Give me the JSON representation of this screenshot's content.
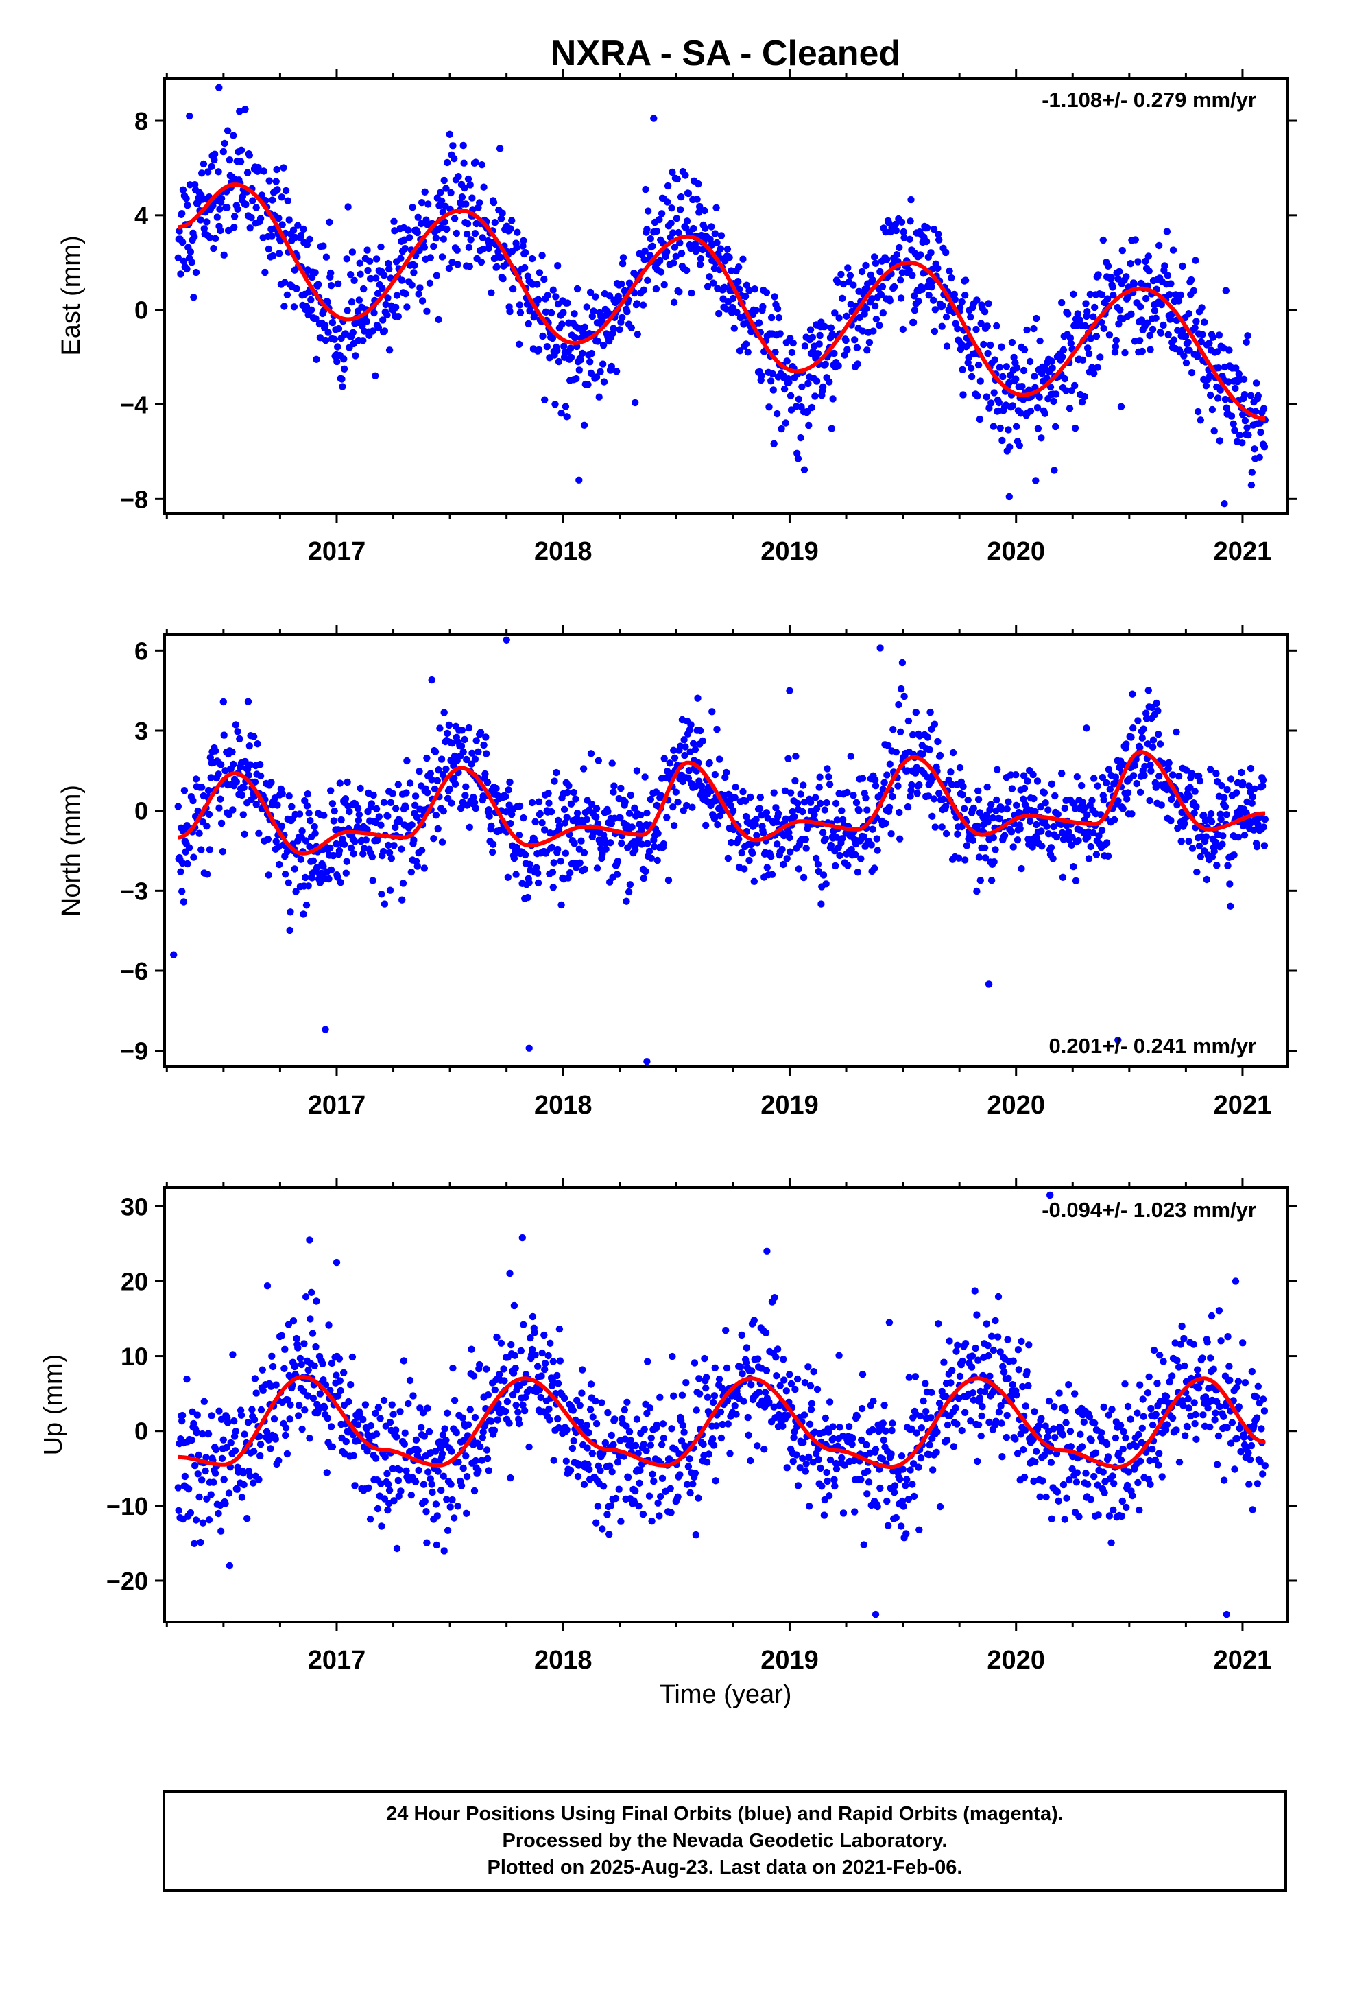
{
  "title": "NXRA  - SA - Cleaned",
  "xlabel": "Time (year)",
  "colors": {
    "points": "#0000ff",
    "fit": "#ff0000",
    "axis": "#000000"
  },
  "footer": {
    "line1": "24 Hour Positions Using Final Orbits (blue) and Rapid Orbits (magenta).",
    "line2": "Processed by the Nevada Geodetic Laboratory.",
    "line3": "Plotted on 2025-Aug-23. Last data on 2021-Feb-06."
  },
  "chart_data": [
    {
      "type": "scatter",
      "panel": "east",
      "ylabel": "East (mm)",
      "rate_label": "-1.108+/- 0.279 mm/yr",
      "xlim": [
        2016.24,
        2021.2
      ],
      "ylim": [
        -8.6,
        9.8
      ],
      "yticks": [
        -8,
        -4,
        0,
        4,
        8
      ],
      "xticks": [
        2017,
        2018,
        2019,
        2020,
        2021
      ],
      "grid": false,
      "series": [
        {
          "kind": "fit",
          "x": [
            2016.3,
            2016.55,
            2017.05,
            2017.55,
            2018.05,
            2018.55,
            2019.03,
            2019.53,
            2020.03,
            2020.55,
            2021.1
          ],
          "values": [
            3.5,
            5.3,
            -0.4,
            4.2,
            -1.4,
            3.1,
            -2.6,
            2.0,
            -3.6,
            0.9,
            -4.6
          ]
        },
        {
          "kind": "points",
          "sampling": "daily, approx. 1 point per day between 2016.3 and 2021.1",
          "scatter_sd": 1.25,
          "outliers": [
            [
              2016.48,
              9.4
            ],
            [
              2018.4,
              8.1
            ],
            [
              2018.07,
              -7.2
            ],
            [
              2019.97,
              -7.9
            ],
            [
              2020.92,
              -8.2
            ],
            [
              2016.35,
              8.2
            ]
          ]
        }
      ]
    },
    {
      "type": "scatter",
      "panel": "north",
      "ylabel": "North (mm)",
      "rate_label": "0.201+/- 0.241 mm/yr",
      "xlim": [
        2016.24,
        2021.2
      ],
      "ylim": [
        -9.6,
        6.6
      ],
      "yticks": [
        -9,
        -6,
        -3,
        0,
        3,
        6
      ],
      "xticks": [
        2017,
        2018,
        2019,
        2020,
        2021
      ],
      "grid": false,
      "series": [
        {
          "kind": "fit",
          "x": [
            2016.3,
            2016.55,
            2016.85,
            2017.05,
            2017.3,
            2017.55,
            2017.85,
            2018.1,
            2018.35,
            2018.55,
            2018.85,
            2019.05,
            2019.3,
            2019.55,
            2019.85,
            2020.05,
            2020.35,
            2020.55,
            2020.85,
            2021.1
          ],
          "values": [
            -1.0,
            1.4,
            -1.6,
            -0.8,
            -1.0,
            1.6,
            -1.3,
            -0.6,
            -0.9,
            1.8,
            -1.1,
            -0.4,
            -0.7,
            2.0,
            -0.9,
            -0.2,
            -0.5,
            2.2,
            -0.7,
            -0.1
          ]
        },
        {
          "kind": "points",
          "sampling": "daily, approx. 1 point per day between 2016.3 and 2021.1",
          "scatter_sd": 1.0,
          "outliers": [
            [
              2016.28,
              -5.4
            ],
            [
              2016.95,
              -8.2
            ],
            [
              2017.75,
              6.4
            ],
            [
              2017.85,
              -8.9
            ],
            [
              2018.37,
              -9.4
            ],
            [
              2019.4,
              6.1
            ],
            [
              2020.45,
              -8.6
            ],
            [
              2019.88,
              -6.5
            ],
            [
              2019.0,
              4.5
            ],
            [
              2017.42,
              4.9
            ]
          ]
        }
      ]
    },
    {
      "type": "scatter",
      "panel": "up",
      "ylabel": "Up (mm)",
      "rate_label": "-0.094+/- 1.023 mm/yr",
      "xlim": [
        2016.24,
        2021.2
      ],
      "ylim": [
        -25.5,
        32.5
      ],
      "yticks": [
        -20,
        -10,
        0,
        10,
        20,
        30
      ],
      "xticks": [
        2017,
        2018,
        2019,
        2020,
        2021
      ],
      "grid": false,
      "series": [
        {
          "kind": "fit",
          "x": [
            2016.3,
            2016.5,
            2016.85,
            2017.2,
            2017.45,
            2017.83,
            2018.2,
            2018.45,
            2018.83,
            2019.2,
            2019.45,
            2019.83,
            2020.2,
            2020.45,
            2020.83,
            2021.1
          ],
          "values": [
            -3.5,
            -4.5,
            7.2,
            -2.5,
            -4.6,
            7.0,
            -2.5,
            -4.6,
            7.0,
            -2.6,
            -4.8,
            7.0,
            -2.6,
            -4.8,
            7.0,
            -1.5
          ]
        },
        {
          "kind": "points",
          "sampling": "daily, approx. 1 point per day between 2016.3 and 2021.1",
          "scatter_sd": 4.5,
          "outliers": [
            [
              2016.88,
              25.5
            ],
            [
              2017.82,
              25.8
            ],
            [
              2018.9,
              24.0
            ],
            [
              2019.38,
              -24.5
            ],
            [
              2020.93,
              -24.5
            ],
            [
              2020.15,
              31.5
            ],
            [
              2020.97,
              20.0
            ],
            [
              2017.0,
              22.5
            ]
          ]
        }
      ]
    }
  ]
}
